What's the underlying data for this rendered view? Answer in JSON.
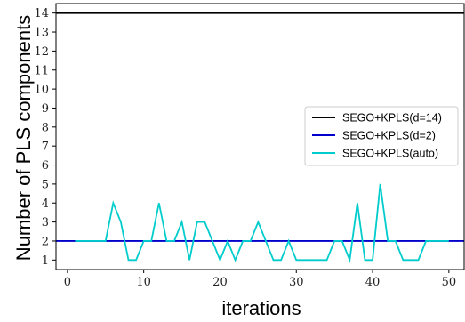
{
  "chart_data": {
    "type": "line",
    "title": "",
    "xlabel": "iterations",
    "ylabel": "Number of PLS components",
    "xlim": [
      -1.5,
      52
    ],
    "ylim": [
      0.5,
      14.5
    ],
    "xticks": [
      0,
      10,
      20,
      30,
      40,
      50
    ],
    "yticks": [
      1,
      2,
      3,
      4,
      5,
      6,
      7,
      8,
      9,
      10,
      11,
      12,
      13,
      14
    ],
    "grid": false,
    "legend_position": "center-right",
    "series": [
      {
        "name": "SEGO+KPLS(d=14)",
        "color": "#000000",
        "x": [
          -1.5,
          52
        ],
        "y": [
          14,
          14
        ]
      },
      {
        "name": "SEGO+KPLS(d=2)",
        "color": "#0000cc",
        "x": [
          -1.5,
          52
        ],
        "y": [
          2,
          2
        ]
      },
      {
        "name": "SEGO+KPLS(auto)",
        "color": "#00cccc",
        "x": [
          1,
          2,
          3,
          4,
          5,
          6,
          7,
          8,
          9,
          10,
          11,
          12,
          13,
          14,
          15,
          16,
          17,
          18,
          19,
          20,
          21,
          22,
          23,
          24,
          25,
          26,
          27,
          28,
          29,
          30,
          31,
          32,
          33,
          34,
          35,
          36,
          37,
          38,
          39,
          40,
          41,
          42,
          43,
          44,
          45,
          46,
          47,
          48,
          49,
          50
        ],
        "y": [
          2,
          2,
          2,
          2,
          2,
          4,
          3,
          1,
          1,
          2,
          2,
          4,
          2,
          2,
          3,
          1,
          3,
          3,
          2,
          1,
          2,
          1,
          2,
          2,
          3,
          2,
          1,
          1,
          2,
          1,
          1,
          1,
          1,
          1,
          2,
          2,
          1,
          4,
          1,
          1,
          5,
          2,
          2,
          1,
          1,
          1,
          2,
          2,
          2,
          2
        ]
      }
    ]
  }
}
